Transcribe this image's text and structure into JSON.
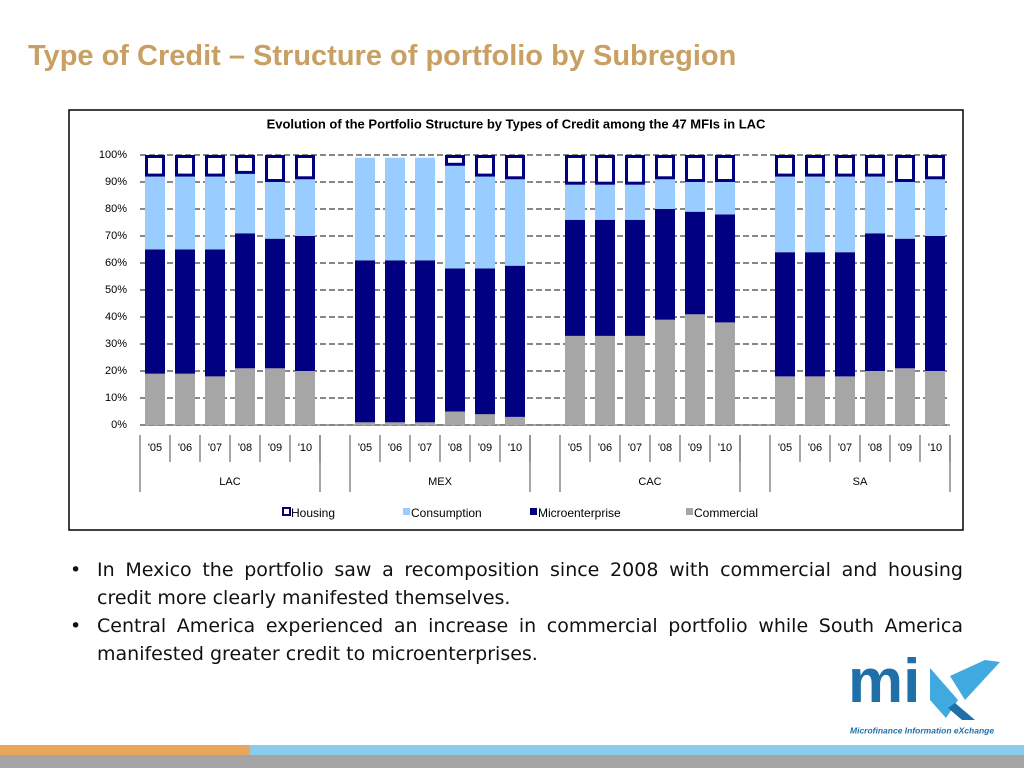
{
  "title": "Type of Credit – Structure of portfolio by Subregion",
  "chart_data": {
    "type": "stacked_bar",
    "title": "Evolution of the Portfolio Structure by Types of Credit among the 47 MFIs in LAC",
    "groups": [
      "LAC",
      "MEX",
      "CAC",
      "SA"
    ],
    "categories": [
      "'05",
      "'06",
      "'07",
      "'08",
      "'09",
      "'10",
      "'05",
      "'06",
      "'07",
      "'08",
      "'09",
      "'10",
      "'05",
      "'06",
      "'07",
      "'08",
      "'09",
      "'10",
      "'05",
      "'06",
      "'07",
      "'08",
      "'09",
      "'10"
    ],
    "series": [
      {
        "name": "Housing",
        "color": "#000080",
        "values": [
          8,
          8,
          8,
          7,
          10,
          9,
          1,
          1,
          1,
          4,
          8,
          9,
          11,
          11,
          11,
          9,
          10,
          10,
          8,
          8,
          8,
          8,
          10,
          9
        ]
      },
      {
        "name": "Consumption",
        "color": "#99ccff",
        "values": [
          27,
          27,
          27,
          22,
          21,
          21,
          38,
          38,
          38,
          38,
          34,
          32,
          13,
          13,
          13,
          11,
          11,
          12,
          28,
          28,
          28,
          21,
          21,
          21
        ]
      },
      {
        "name": "Microenterprise",
        "color": "#000080",
        "values": [
          46,
          46,
          47,
          50,
          48,
          50,
          60,
          60,
          60,
          53,
          54,
          56,
          43,
          43,
          43,
          41,
          38,
          40,
          46,
          46,
          46,
          51,
          48,
          50
        ]
      },
      {
        "name": "Commercial",
        "color": "#a6a6a6",
        "values": [
          19,
          19,
          18,
          21,
          21,
          20,
          1,
          1,
          1,
          5,
          4,
          3,
          33,
          33,
          33,
          39,
          41,
          38,
          18,
          18,
          18,
          20,
          21,
          20
        ]
      }
    ],
    "ylim": [
      0,
      100
    ],
    "yticks": [
      {
        "value": 0,
        "label": "0%"
      },
      {
        "value": 10,
        "label": "10%"
      },
      {
        "value": 20,
        "label": "20%"
      },
      {
        "value": 30,
        "label": "30%"
      },
      {
        "value": 40,
        "label": "40%"
      },
      {
        "value": 50,
        "label": "50%"
      },
      {
        "value": 60,
        "label": "60%"
      },
      {
        "value": 70,
        "label": "70%"
      },
      {
        "value": 80,
        "label": "80%"
      },
      {
        "value": 90,
        "label": "90%"
      },
      {
        "value": 100,
        "label": "100%"
      }
    ],
    "grid": true,
    "legend": "bottom"
  },
  "bullets": [
    "In Mexico the portfolio saw a recomposition since 2008 with commercial and housing credit more clearly manifested themselves.",
    "Central America experienced an increase in commercial portfolio while South America manifested greater credit to microenterprises."
  ],
  "logo": {
    "text": "mi",
    "tagline": "Microfinance Information eXchange"
  }
}
